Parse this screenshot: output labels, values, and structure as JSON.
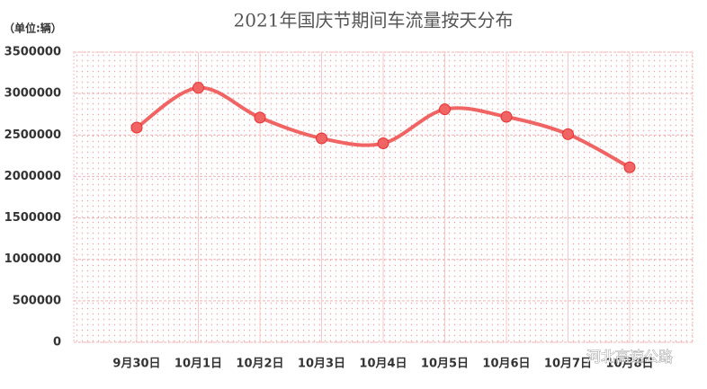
{
  "chart_data": {
    "type": "line",
    "title": "2021年国庆节期间车流量按天分布",
    "y_label": "（单位:辆）",
    "categories": [
      "9月30日",
      "10月1日",
      "10月2日",
      "10月3日",
      "10月4日",
      "10月5日",
      "10月6日",
      "10月7日",
      "10月8日"
    ],
    "values": [
      2590000,
      3070000,
      2710000,
      2460000,
      2400000,
      2810000,
      2720000,
      2510000,
      2110000
    ],
    "color": "#f06464",
    "smooth": true,
    "grid": true,
    "ylim": [
      0,
      3500000
    ],
    "yticks": [
      0,
      500000,
      1000000,
      1500000,
      2000000,
      2500000,
      3000000,
      3500000
    ],
    "watermark": "河北高速公路"
  }
}
